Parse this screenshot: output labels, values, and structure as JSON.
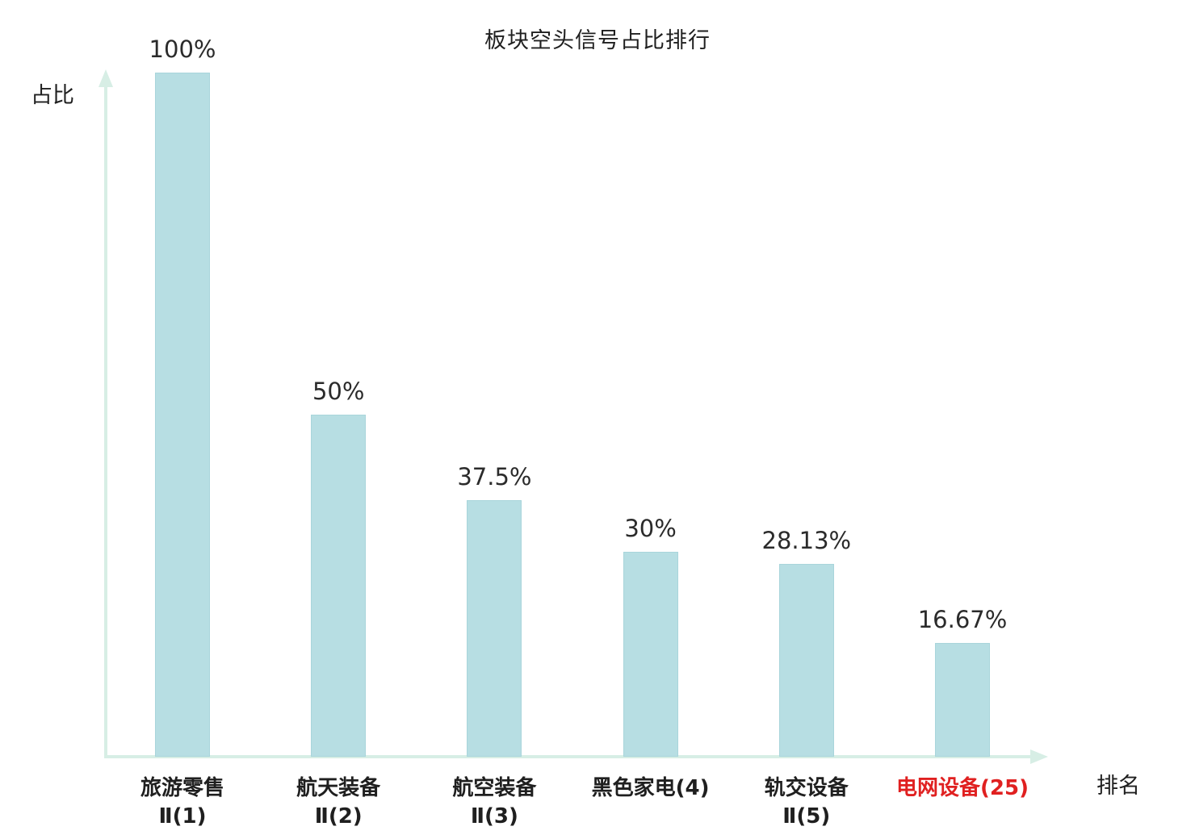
{
  "title": "板块空头信号占比排行",
  "axes": {
    "y_label": "占比",
    "x_label": "排名"
  },
  "colors": {
    "bar_fill": "#b7dee3",
    "bar_border": "#a9d5db",
    "axis": "#d7eee5",
    "text": "#1f1f1f",
    "highlight": "#e02020"
  },
  "chart_data": {
    "type": "bar",
    "title": "板块空头信号占比排行",
    "xlabel": "排名",
    "ylabel": "占比",
    "ylim": [
      0,
      100
    ],
    "grid": false,
    "legend_position": "none",
    "categories": [
      "旅游零售Ⅱ(1)",
      "航天装备Ⅱ(2)",
      "航空装备Ⅱ(3)",
      "黑色家电(4)",
      "轨交设备Ⅱ(5)",
      "电网设备(25)"
    ],
    "values": [
      100,
      50,
      37.5,
      30,
      28.13,
      16.67
    ],
    "value_labels": [
      "100%",
      "50%",
      "37.5%",
      "30%",
      "28.13%",
      "16.67%"
    ],
    "bars": [
      {
        "label_line1": "旅游零售",
        "label_line2": "Ⅱ(1)",
        "value": 100,
        "value_label": "100%",
        "highlight": false
      },
      {
        "label_line1": "航天装备",
        "label_line2": "Ⅱ(2)",
        "value": 50,
        "value_label": "50%",
        "highlight": false
      },
      {
        "label_line1": "航空装备",
        "label_line2": "Ⅱ(3)",
        "value": 37.5,
        "value_label": "37.5%",
        "highlight": false
      },
      {
        "label_line1": "黑色家电(4)",
        "label_line2": "",
        "value": 30,
        "value_label": "30%",
        "highlight": false
      },
      {
        "label_line1": "轨交设备",
        "label_line2": "Ⅱ(5)",
        "value": 28.13,
        "value_label": "28.13%",
        "highlight": false
      },
      {
        "label_line1": "电网设备(25)",
        "label_line2": "",
        "value": 16.67,
        "value_label": "16.67%",
        "highlight": true
      }
    ]
  }
}
